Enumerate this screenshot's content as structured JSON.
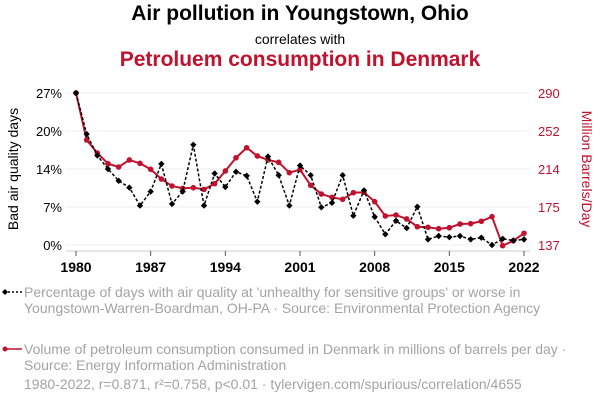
{
  "header": {
    "title": "Air pollution in Youngstown, Ohio",
    "subtitle": "correlates with",
    "title2": "Petroluem consumption in Denmark"
  },
  "colors": {
    "series1": "#000000",
    "series2": "#C0122E",
    "legend_text": "#a3a3a3",
    "grid": "#eeeeee"
  },
  "chart_data": {
    "type": "line",
    "title": "Air pollution in Youngstown, Ohio correlates with Petroluem consumption in Denmark",
    "xlabel": "",
    "ylabel_left": "Bad air quality days",
    "ylabel_right": "Million Barrels/Day",
    "x": [
      1980,
      1981,
      1982,
      1983,
      1984,
      1985,
      1986,
      1987,
      1988,
      1989,
      1990,
      1991,
      1992,
      1993,
      1994,
      1995,
      1996,
      1997,
      1998,
      1999,
      2000,
      2001,
      2002,
      2003,
      2004,
      2005,
      2006,
      2007,
      2008,
      2009,
      2010,
      2011,
      2012,
      2013,
      2014,
      2015,
      2016,
      2017,
      2018,
      2019,
      2020,
      2021,
      2022
    ],
    "x_ticks": [
      "1980",
      "1987",
      "1994",
      "2001",
      "2008",
      "2015",
      "2022"
    ],
    "y_left_ticks": [
      "0%",
      "7%",
      "14%",
      "20%",
      "27%"
    ],
    "y_left_range": [
      0,
      27
    ],
    "y_right_ticks": [
      "137",
      "175",
      "214",
      "252",
      "290"
    ],
    "y_right_range": [
      137,
      290
    ],
    "grid": true,
    "series": [
      {
        "name": "Percentage of days with air quality at 'unhealthy for sensitive groups' or worse in Youngstown-Warren-Boardman, OH-PA · Source: Environmental Protection Agency",
        "axis": "left",
        "style": "dashed",
        "marker": "diamond",
        "values": [
          27.0,
          19.7,
          15.9,
          13.5,
          11.4,
          10.2,
          7.0,
          9.5,
          14.4,
          7.3,
          9.5,
          17.8,
          7.0,
          12.7,
          10.3,
          13.0,
          12.3,
          7.7,
          15.7,
          12.4,
          7.0,
          14.1,
          12.4,
          6.7,
          7.5,
          12.4,
          5.2,
          9.7,
          5.0,
          1.9,
          4.3,
          3.0,
          6.8,
          1.0,
          1.6,
          1.4,
          1.6,
          1.0,
          1.3,
          0.0,
          1.1,
          0.8,
          1.0
        ]
      },
      {
        "name": "Volume of petroleum consumption consumed in Denmark in millions of barrels per day · Source: Energy Information Administration",
        "axis": "right",
        "style": "solid",
        "marker": "circle",
        "values": [
          290.0,
          242.7,
          229.6,
          218.8,
          215.5,
          222.6,
          219.2,
          213.2,
          203.4,
          196.4,
          194.0,
          194.7,
          193.0,
          198.7,
          211.5,
          224.8,
          234.9,
          226.6,
          222.6,
          220.2,
          209.8,
          212.8,
          197.1,
          188.3,
          185.0,
          183.0,
          189.7,
          190.0,
          180.6,
          166.2,
          167.2,
          163.2,
          155.4,
          154.8,
          153.4,
          154.4,
          158.1,
          158.5,
          160.9,
          165.5,
          136.3,
          141.3,
          148.8
        ]
      }
    ]
  },
  "legend": {
    "item1": "Percentage of days with air quality at 'unhealthy for sensitive groups' or worse in Youngstown-Warren-Boardman, OH-PA · Source: Environmental Protection Agency",
    "item2": "Volume of petroleum consumption consumed in Denmark in millions of barrels per day · Source: Energy Information Administration"
  },
  "footer": {
    "stats": "1980-2022, r=0.871, r²=0.758, p<0.01 · tylervigen.com/spurious/correlation/4655"
  }
}
